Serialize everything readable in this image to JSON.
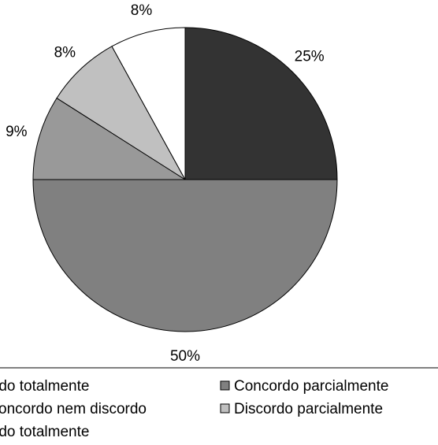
{
  "chart_data": {
    "type": "pie",
    "title": "",
    "slices": [
      {
        "label": "Concordo totalmente",
        "value": 25,
        "value_label": "25%",
        "color": "#333333"
      },
      {
        "label": "Concordo parcialmente",
        "value": 50,
        "value_label": "50%",
        "color": "#808080"
      },
      {
        "label": "Nem concordo nem discordo",
        "value": 9,
        "value_label": "9%",
        "color": "#999999"
      },
      {
        "label": "Discordo parcialmente",
        "value": 8,
        "value_label": "8%",
        "color": "#c0c0c0"
      },
      {
        "label": "Discordo totalmente",
        "value": 8,
        "value_label": "8%",
        "color": "#ffffff"
      }
    ],
    "legend": {
      "placement": "bottom",
      "visible_entries": [
        "rdo totalmente",
        "Concordo parcialmente",
        "oncordo nem discordo",
        "Discordo parcialmente",
        "rdo totalmente"
      ]
    }
  }
}
